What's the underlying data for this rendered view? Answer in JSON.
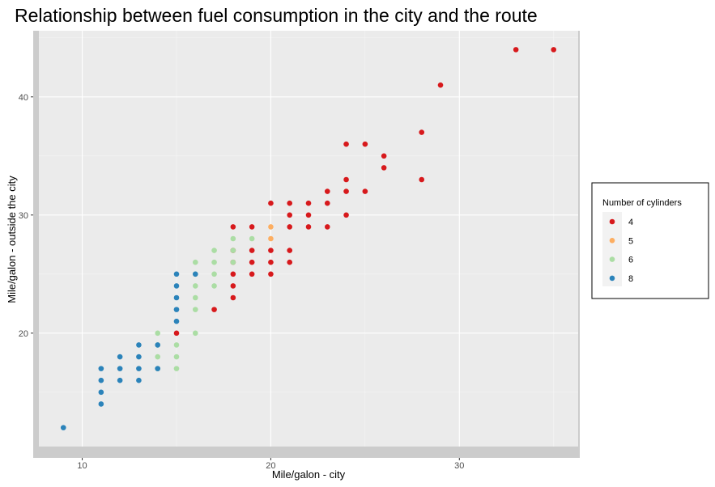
{
  "chart_data": {
    "type": "scatter",
    "title": "Relationship between fuel consumption in the city and the route",
    "xlabel": "Mile/galon - city",
    "ylabel": "Mile/galon - outside the city",
    "xlim": [
      7.7,
      36.3
    ],
    "ylim": [
      10.4,
      45.6
    ],
    "x_ticks": [
      10,
      20,
      30
    ],
    "y_ticks": [
      20,
      30,
      40
    ],
    "x_tick_labels": [
      "10",
      "20",
      "30"
    ],
    "y_tick_labels": [
      "20",
      "30",
      "40"
    ],
    "grid": true,
    "legend_position": "right",
    "legend": {
      "title": "Number of cylinders",
      "items": [
        {
          "label": "4",
          "color": "#d7191c"
        },
        {
          "label": "5",
          "color": "#fdae61"
        },
        {
          "label": "6",
          "color": "#abdda4"
        },
        {
          "label": "8",
          "color": "#2b83ba"
        }
      ]
    },
    "colors": {
      "4": "#d7191c",
      "5": "#fdae61",
      "6": "#abdda4",
      "8": "#2b83ba"
    },
    "series": [
      {
        "name": "4",
        "points": [
          [
            15,
            20
          ],
          [
            17,
            22
          ],
          [
            18,
            23
          ],
          [
            18,
            24
          ],
          [
            18,
            25
          ],
          [
            18,
            26
          ],
          [
            18,
            27
          ],
          [
            18,
            29
          ],
          [
            19,
            25
          ],
          [
            19,
            26
          ],
          [
            19,
            27
          ],
          [
            19,
            29
          ],
          [
            20,
            25
          ],
          [
            20,
            26
          ],
          [
            20,
            27
          ],
          [
            20,
            31
          ],
          [
            21,
            26
          ],
          [
            21,
            27
          ],
          [
            21,
            29
          ],
          [
            21,
            30
          ],
          [
            21,
            31
          ],
          [
            22,
            29
          ],
          [
            22,
            30
          ],
          [
            22,
            31
          ],
          [
            23,
            29
          ],
          [
            23,
            31
          ],
          [
            23,
            32
          ],
          [
            24,
            30
          ],
          [
            24,
            32
          ],
          [
            24,
            33
          ],
          [
            24,
            36
          ],
          [
            25,
            32
          ],
          [
            25,
            36
          ],
          [
            26,
            34
          ],
          [
            26,
            35
          ],
          [
            28,
            33
          ],
          [
            28,
            37
          ],
          [
            29,
            41
          ],
          [
            33,
            44
          ],
          [
            35,
            44
          ]
        ]
      },
      {
        "name": "5",
        "points": [
          [
            20,
            28
          ],
          [
            20,
            29
          ]
        ]
      },
      {
        "name": "6",
        "points": [
          [
            14,
            17
          ],
          [
            14,
            18
          ],
          [
            14,
            19
          ],
          [
            14,
            20
          ],
          [
            15,
            17
          ],
          [
            15,
            18
          ],
          [
            15,
            19
          ],
          [
            16,
            20
          ],
          [
            16,
            22
          ],
          [
            16,
            23
          ],
          [
            16,
            24
          ],
          [
            16,
            25
          ],
          [
            16,
            26
          ],
          [
            17,
            24
          ],
          [
            17,
            25
          ],
          [
            17,
            26
          ],
          [
            17,
            27
          ],
          [
            18,
            26
          ],
          [
            18,
            27
          ],
          [
            18,
            28
          ],
          [
            19,
            28
          ]
        ]
      },
      {
        "name": "8",
        "points": [
          [
            9,
            12
          ],
          [
            11,
            14
          ],
          [
            11,
            15
          ],
          [
            11,
            16
          ],
          [
            11,
            17
          ],
          [
            12,
            16
          ],
          [
            12,
            17
          ],
          [
            12,
            18
          ],
          [
            13,
            16
          ],
          [
            13,
            17
          ],
          [
            13,
            18
          ],
          [
            13,
            19
          ],
          [
            14,
            17
          ],
          [
            14,
            19
          ],
          [
            15,
            21
          ],
          [
            15,
            22
          ],
          [
            15,
            23
          ],
          [
            15,
            24
          ],
          [
            15,
            25
          ],
          [
            16,
            25
          ]
        ]
      }
    ]
  }
}
